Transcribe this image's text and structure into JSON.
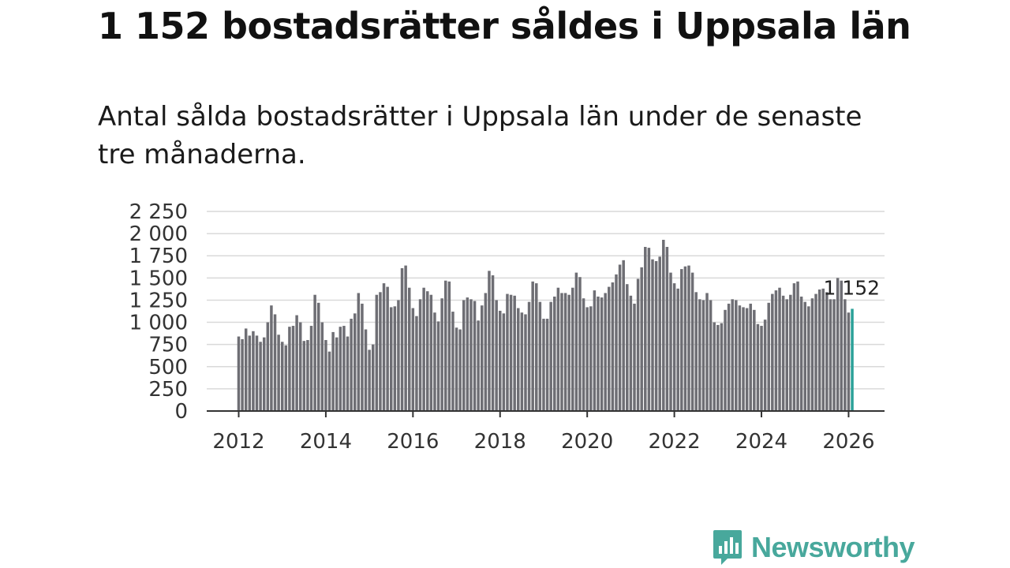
{
  "header": {
    "title": "1 152 bostadsrätter såldes i Uppsala län",
    "subtitle": "Antal sålda bostadsrätter i Uppsala län under de senaste tre månaderna."
  },
  "brand": {
    "name": "Newsworthy",
    "icon": "newsworthy-logo-icon",
    "color": "#48a89c"
  },
  "colors": {
    "bar": "#6e6e74",
    "highlight": "#2aa198",
    "grid": "#d9d9d9",
    "axis": "#333333"
  },
  "chart_data": {
    "type": "bar",
    "title": "1 152 bostadsrätter såldes i Uppsala län",
    "xlabel": "",
    "ylabel": "",
    "ylim": [
      0,
      2250
    ],
    "y_ticks": [
      0,
      250,
      500,
      750,
      1000,
      1250,
      1500,
      1750,
      2000,
      2250
    ],
    "y_tick_labels": [
      "0",
      "250",
      "500",
      "750",
      "1 000",
      "1 250",
      "1 500",
      "1 750",
      "2 000",
      "2 250"
    ],
    "x_ticks": [
      2012,
      2014,
      2016,
      2018,
      2020,
      2022,
      2024,
      2026
    ],
    "x_tick_labels": [
      "2012",
      "2014",
      "2016",
      "2018",
      "2020",
      "2022",
      "2024",
      "2026"
    ],
    "start": "2012-01",
    "frequency": "monthly",
    "grid": true,
    "highlight_last": true,
    "last_value_label": "1 152",
    "values": [
      840,
      810,
      930,
      850,
      900,
      850,
      780,
      830,
      1000,
      1190,
      1090,
      860,
      780,
      740,
      950,
      960,
      1080,
      1000,
      790,
      800,
      960,
      1310,
      1220,
      1000,
      800,
      670,
      890,
      830,
      950,
      960,
      840,
      1040,
      1100,
      1330,
      1210,
      920,
      690,
      750,
      1310,
      1340,
      1440,
      1400,
      1170,
      1180,
      1250,
      1610,
      1640,
      1390,
      1160,
      1070,
      1260,
      1390,
      1350,
      1310,
      1110,
      1010,
      1270,
      1470,
      1460,
      1120,
      940,
      920,
      1250,
      1280,
      1260,
      1240,
      1020,
      1190,
      1330,
      1580,
      1530,
      1250,
      1130,
      1100,
      1320,
      1310,
      1300,
      1160,
      1110,
      1090,
      1230,
      1460,
      1440,
      1230,
      1040,
      1040,
      1230,
      1290,
      1390,
      1330,
      1330,
      1310,
      1390,
      1560,
      1510,
      1270,
      1170,
      1180,
      1360,
      1290,
      1280,
      1330,
      1400,
      1450,
      1540,
      1650,
      1700,
      1430,
      1300,
      1210,
      1490,
      1620,
      1850,
      1840,
      1710,
      1690,
      1740,
      1930,
      1850,
      1560,
      1440,
      1380,
      1600,
      1630,
      1640,
      1560,
      1340,
      1260,
      1250,
      1330,
      1250,
      1000,
      970,
      990,
      1140,
      1210,
      1260,
      1250,
      1190,
      1170,
      1160,
      1210,
      1140,
      980,
      960,
      1030,
      1220,
      1320,
      1360,
      1390,
      1300,
      1260,
      1310,
      1440,
      1460,
      1290,
      1230,
      1180,
      1270,
      1320,
      1370,
      1380,
      1340,
      1260,
      1260,
      1500,
      1470,
      1260,
      1110,
      1152
    ]
  }
}
